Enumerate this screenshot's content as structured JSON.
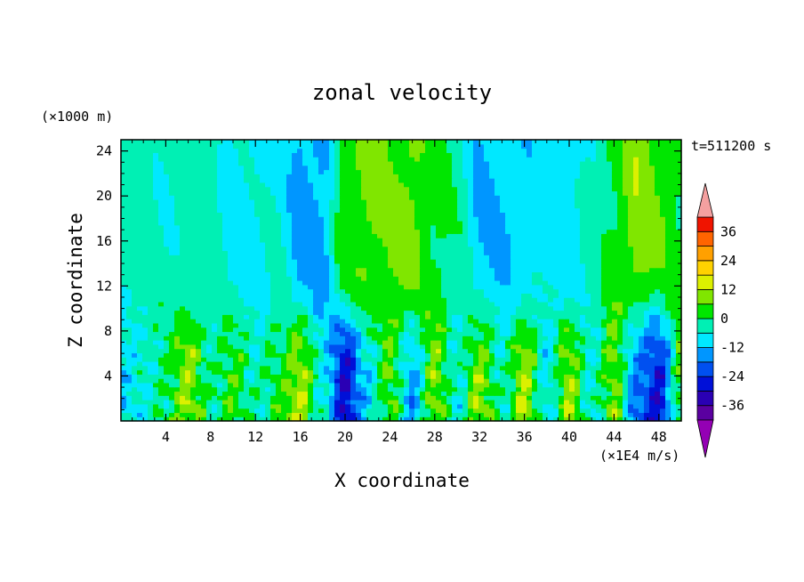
{
  "chart_data": {
    "type": "heatmap",
    "title": "zonal velocity",
    "xlabel": "X coordinate",
    "ylabel": "Z coordinate",
    "y_unit_label": "(×1000 m)",
    "x_unit_label": "(×1E4 m/s)",
    "time_label": "t=511200 s",
    "xlim": [
      0,
      50
    ],
    "ylim": [
      0,
      25
    ],
    "x_ticks": [
      "4",
      "8",
      "12",
      "16",
      "20",
      "24",
      "28",
      "32",
      "36",
      "40",
      "44",
      "48"
    ],
    "x_tick_values": [
      4,
      8,
      12,
      16,
      20,
      24,
      28,
      32,
      36,
      40,
      44,
      48
    ],
    "y_ticks": [
      "4",
      "8",
      "12",
      "16",
      "20",
      "24"
    ],
    "y_tick_values": [
      4,
      8,
      12,
      16,
      20,
      24
    ],
    "colorbar": {
      "tick_labels": [
        "36",
        "24",
        "12",
        "0",
        "-12",
        "-24",
        "-36"
      ],
      "tick_values": [
        36,
        24,
        12,
        0,
        -12,
        -24,
        -36
      ],
      "levels": [
        -42,
        -36,
        -30,
        -24,
        -18,
        -12,
        -6,
        0,
        6,
        12,
        18,
        24,
        30,
        36,
        42
      ],
      "under_color": "#9400b4",
      "over_color": "#f4a0a0",
      "colors": [
        "#5a00a0",
        "#2a00b4",
        "#0010d8",
        "#0050f0",
        "#0096ff",
        "#00e8ff",
        "#00f0b4",
        "#00e600",
        "#80e600",
        "#dcf000",
        "#ffd200",
        "#ffa000",
        "#ff6400",
        "#f01400"
      ]
    },
    "field": {
      "description_none": "",
      "x_columns": [
        0,
        2,
        4,
        6,
        8,
        10,
        12,
        14,
        16,
        18,
        20,
        22,
        24,
        26,
        28,
        30,
        32,
        34,
        36,
        38,
        40,
        42,
        44,
        46,
        48,
        50
      ],
      "upper_value_by_column": [
        -3,
        -3,
        -5,
        -3,
        -3,
        -8,
        -8,
        -6,
        -14,
        -14,
        4,
        8,
        6,
        8,
        2,
        -2,
        -12,
        -12,
        -10,
        -8,
        -10,
        -4,
        2,
        10,
        6,
        2
      ],
      "lower_value_by_column": [
        -10,
        -6,
        0,
        10,
        -2,
        4,
        -4,
        2,
        12,
        -6,
        -30,
        -10,
        6,
        -14,
        8,
        -6,
        10,
        -4,
        12,
        -8,
        10,
        -6,
        8,
        -18,
        -28,
        4
      ]
    }
  }
}
